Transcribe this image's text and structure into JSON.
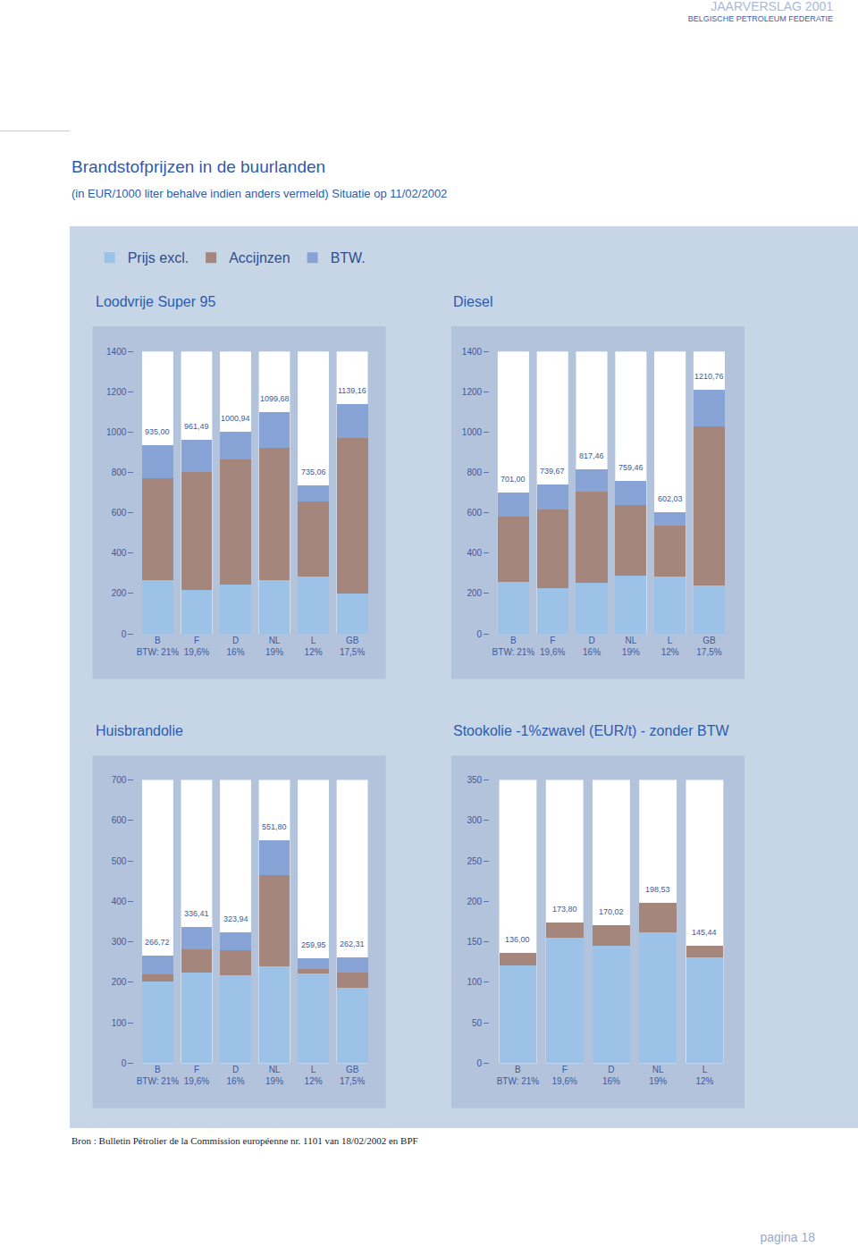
{
  "page": {
    "header": "JAARVERSLAG 2001",
    "organisation": "BELGISCHE PETROLEUM FEDERATIE",
    "title": "Brandstofprijzen in de buurlanden",
    "subtitle": "(in EUR/1000 liter behalve indien anders vermeld) Situatie op 11/02/2002",
    "source": "Bron : Bulletin Pétrolier de la Commission européenne nr. 1101 van 18/02/2002 en BPF",
    "page_number": "pagina 18"
  },
  "chart_data": [
    {
      "type": "bar",
      "stacked": true,
      "grid": false,
      "legend": "top left",
      "title": "Loodvrije Super 95",
      "categories": [
        "B",
        "F",
        "D",
        "NL",
        "L",
        "GB"
      ],
      "category_sublabels": [
        "BTW: 21%",
        "19,6%",
        "16%",
        "19%",
        "12%",
        "17,5%"
      ],
      "series": [
        {
          "name": "Prijs excl.",
          "color": "#9cc2e8",
          "values": [
            265.73,
            217.02,
            242.48,
            268.1,
            284.2,
            199.5
          ]
        },
        {
          "name": "Accijnzen",
          "color": "#a4867c",
          "values": [
            507.0,
            586.9,
            620.4,
            656.0,
            372.1,
            770.0
          ]
        },
        {
          "name": "BTW.",
          "color": "#88a4d6",
          "values": [
            162.27,
            157.57,
            138.06,
            175.58,
            78.76,
            169.66
          ]
        }
      ],
      "totals": [
        935.0,
        961.49,
        1000.94,
        1099.68,
        735.06,
        1139.16
      ],
      "total_labels": [
        "935,00",
        "961,49",
        "1000,94",
        "1099,68",
        "735,06",
        "1139,16"
      ],
      "ylim": [
        0,
        1400
      ],
      "yticks": [
        0,
        200,
        400,
        600,
        800,
        1000,
        1200,
        1400
      ]
    },
    {
      "type": "bar",
      "stacked": true,
      "grid": false,
      "title": "Diesel",
      "categories": [
        "B",
        "F",
        "D",
        "NL",
        "L",
        "GB"
      ],
      "category_sublabels": [
        "BTW: 21%",
        "19,6%",
        "16%",
        "19%",
        "12%",
        "17,5%"
      ],
      "series": [
        {
          "name": "Prijs excl.",
          "color": "#9cc2e8",
          "values": [
            259.34,
            228.45,
            254.31,
            290.2,
            284.53,
            240.43
          ]
        },
        {
          "name": "Accijnzen",
          "color": "#a4867c",
          "values": [
            320.0,
            390.0,
            450.4,
            348.0,
            253.0,
            790.0
          ]
        },
        {
          "name": "BTW.",
          "color": "#88a4d6",
          "values": [
            121.66,
            121.22,
            112.75,
            121.26,
            64.5,
            180.33
          ]
        }
      ],
      "totals": [
        701.0,
        739.67,
        817.46,
        759.46,
        602.03,
        1210.76
      ],
      "total_labels": [
        "701,00",
        "739,67",
        "817,46",
        "759,46",
        "602,03",
        "1210,76"
      ],
      "ylim": [
        0,
        1400
      ],
      "yticks": [
        0,
        200,
        400,
        600,
        800,
        1000,
        1200,
        1400
      ]
    },
    {
      "type": "bar",
      "stacked": true,
      "grid": false,
      "title": "Huisbrandolie",
      "categories": [
        "B",
        "F",
        "D",
        "NL",
        "L",
        "GB"
      ],
      "category_sublabels": [
        "BTW: 21%",
        "19,6%",
        "16%",
        "19%",
        "12%",
        "17,5%"
      ],
      "series": [
        {
          "name": "Prijs excl.",
          "color": "#9cc2e8",
          "values": [
            201.83,
            224.68,
            217.91,
            240.0,
            222.1,
            186.0
          ]
        },
        {
          "name": "Accijnzen",
          "color": "#a4867c",
          "values": [
            18.6,
            56.6,
            61.35,
            223.7,
            10.0,
            37.24
          ]
        },
        {
          "name": "BTW.",
          "color": "#88a4d6",
          "values": [
            46.29,
            55.13,
            44.68,
            88.1,
            27.85,
            39.07
          ]
        }
      ],
      "totals": [
        266.72,
        336.41,
        323.94,
        551.8,
        259.95,
        262.31
      ],
      "total_labels": [
        "266,72",
        "336,41",
        "323,94",
        "551,80",
        "259,95",
        "262,31"
      ],
      "ylim": [
        0,
        700
      ],
      "yticks": [
        0,
        100,
        200,
        300,
        400,
        500,
        600,
        700
      ]
    },
    {
      "type": "bar",
      "stacked": true,
      "grid": false,
      "title": "Stookolie -1%zwavel (EUR/t) - zonder BTW",
      "categories": [
        "B",
        "F",
        "D",
        "NL",
        "L"
      ],
      "category_sublabels": [
        "BTW: 21%",
        "19,6%",
        "16%",
        "19%",
        "12%"
      ],
      "series": [
        {
          "name": "Prijs excl.",
          "color": "#9cc2e8",
          "values": [
            121.0,
            155.3,
            145.02,
            162.0,
            130.44
          ]
        },
        {
          "name": "Accijnzen",
          "color": "#a4867c",
          "values": [
            15.0,
            18.5,
            25.0,
            36.53,
            15.0
          ]
        }
      ],
      "totals": [
        136.0,
        173.8,
        170.02,
        198.53,
        145.44
      ],
      "total_labels": [
        "136,00",
        "173,80",
        "170,02",
        "198,53",
        "145,44"
      ],
      "ylim": [
        0,
        350
      ],
      "yticks": [
        0,
        50,
        100,
        150,
        200,
        250,
        300,
        350
      ]
    }
  ]
}
